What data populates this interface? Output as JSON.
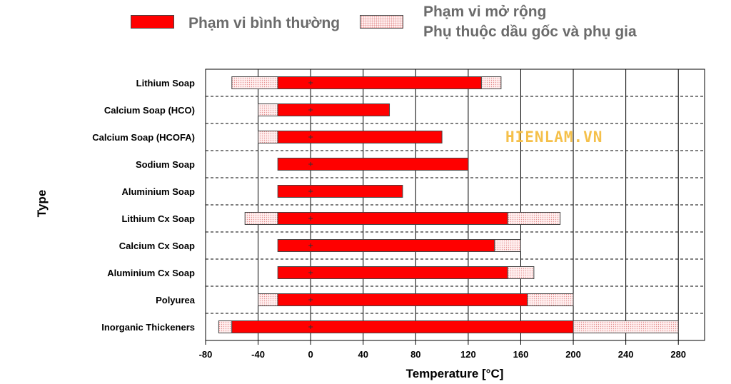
{
  "legend": {
    "normal_label": "Phạm vi bình thường",
    "extended_line1": "Phạm vi mở rộng",
    "extended_line2": "Phụ thuộc dầu gốc và phụ gia"
  },
  "watermark": "HIENLAM.VN",
  "colors": {
    "normal": "#ff0000",
    "extended": "#ffe8e8",
    "border": "#444444"
  },
  "chart_data": {
    "type": "bar",
    "orientation": "horizontal-range",
    "title": "",
    "xlabel": "Temperature [°C]",
    "ylabel": "Type",
    "xlim": [
      -80,
      300
    ],
    "xticks": [
      -80,
      -40,
      0,
      40,
      80,
      120,
      160,
      200,
      240,
      280
    ],
    "grid": true,
    "legend_position": "top",
    "categories": [
      "Lithium Soap",
      "Calcium Soap (HCO)",
      "Calcium Soap (HCOFA)",
      "Sodium Soap",
      "Aluminium Soap",
      "Lithium Cx Soap",
      "Calcium Cx Soap",
      "Aluminium Cx Soap",
      "Polyurea",
      "Inorganic Thickeners"
    ],
    "series": [
      {
        "name": "Phạm vi bình thường",
        "ranges": [
          [
            -25,
            130
          ],
          [
            -25,
            60
          ],
          [
            -25,
            100
          ],
          [
            -25,
            120
          ],
          [
            -25,
            70
          ],
          [
            -25,
            150
          ],
          [
            -25,
            140
          ],
          [
            -25,
            150
          ],
          [
            -25,
            165
          ],
          [
            -60,
            200
          ]
        ]
      },
      {
        "name": "Phạm vi mở rộng",
        "ranges": [
          [
            -60,
            145
          ],
          [
            -40,
            60
          ],
          [
            -40,
            100
          ],
          [
            -25,
            120
          ],
          [
            -25,
            70
          ],
          [
            -50,
            190
          ],
          [
            -25,
            160
          ],
          [
            -25,
            170
          ],
          [
            -40,
            200
          ],
          [
            -70,
            280
          ]
        ]
      }
    ]
  }
}
